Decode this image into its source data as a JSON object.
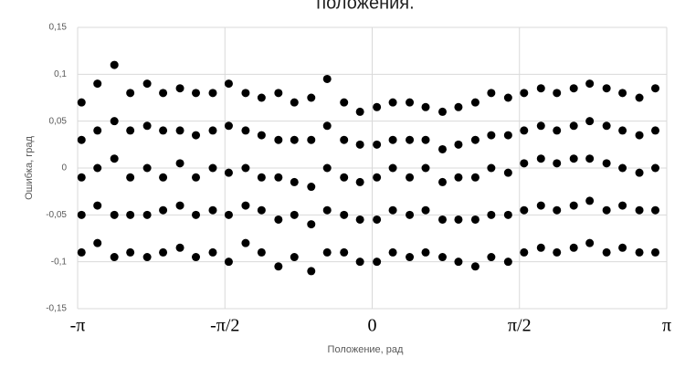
{
  "chart_data": {
    "type": "scatter",
    "title": "положения.",
    "x_label": "Положение, рад",
    "y_label": "Ошибка, град",
    "xlim": [
      -3.14159,
      3.14159
    ],
    "xticks": [
      {
        "value": -3.14159,
        "label": "-π"
      },
      {
        "value": -1.5708,
        "label": "-π/2"
      },
      0,
      {
        "value": 1.5708,
        "label": "π/2"
      },
      {
        "value": 3.14159,
        "label": "π"
      }
    ],
    "ylim": [
      -0.15,
      0.15
    ],
    "yticks": [
      {
        "value": -0.15,
        "label": "-0,15"
      },
      {
        "value": -0.1,
        "label": "-0,1"
      },
      {
        "value": -0.05,
        "label": "-0,05"
      },
      0,
      {
        "value": 0.05,
        "label": "0,05"
      },
      {
        "value": 0.1,
        "label": "0,1"
      },
      {
        "value": 0.15,
        "label": "0,15"
      }
    ],
    "grid": true,
    "color": "#000000",
    "x": [
      -3.1,
      -3.1,
      -3.1,
      -3.1,
      -3.1,
      -2.93,
      -2.93,
      -2.93,
      -2.93,
      -2.93,
      -2.75,
      -2.75,
      -2.75,
      -2.75,
      -2.75,
      -2.58,
      -2.58,
      -2.58,
      -2.58,
      -2.58,
      -2.4,
      -2.4,
      -2.4,
      -2.4,
      -2.4,
      -2.23,
      -2.23,
      -2.23,
      -2.23,
      -2.23,
      -2.05,
      -2.05,
      -2.05,
      -2.05,
      -2.05,
      -1.88,
      -1.88,
      -1.88,
      -1.88,
      -1.88,
      -1.7,
      -1.7,
      -1.7,
      -1.7,
      -1.7,
      -1.53,
      -1.53,
      -1.53,
      -1.53,
      -1.53,
      -1.35,
      -1.35,
      -1.35,
      -1.35,
      -1.35,
      -1.18,
      -1.18,
      -1.18,
      -1.18,
      -1.18,
      -1.0,
      -1.0,
      -1.0,
      -1.0,
      -1.0,
      -0.83,
      -0.83,
      -0.83,
      -0.83,
      -0.83,
      -0.65,
      -0.65,
      -0.65,
      -0.65,
      -0.65,
      -0.48,
      -0.48,
      -0.48,
      -0.48,
      -0.48,
      -0.3,
      -0.3,
      -0.3,
      -0.3,
      -0.3,
      -0.13,
      -0.13,
      -0.13,
      -0.13,
      -0.13,
      0.05,
      0.05,
      0.05,
      0.05,
      0.05,
      0.22,
      0.22,
      0.22,
      0.22,
      0.22,
      0.4,
      0.4,
      0.4,
      0.4,
      0.4,
      0.57,
      0.57,
      0.57,
      0.57,
      0.57,
      0.75,
      0.75,
      0.75,
      0.75,
      0.75,
      0.92,
      0.92,
      0.92,
      0.92,
      0.92,
      1.1,
      1.1,
      1.1,
      1.1,
      1.1,
      1.27,
      1.27,
      1.27,
      1.27,
      1.27,
      1.45,
      1.45,
      1.45,
      1.45,
      1.45,
      1.62,
      1.62,
      1.62,
      1.62,
      1.62,
      1.8,
      1.8,
      1.8,
      1.8,
      1.8,
      1.97,
      1.97,
      1.97,
      1.97,
      1.97,
      2.15,
      2.15,
      2.15,
      2.15,
      2.15,
      2.32,
      2.32,
      2.32,
      2.32,
      2.32,
      2.5,
      2.5,
      2.5,
      2.5,
      2.5,
      2.67,
      2.67,
      2.67,
      2.67,
      2.67,
      2.85,
      2.85,
      2.85,
      2.85,
      2.85,
      3.02,
      3.02,
      3.02,
      3.02,
      3.02
    ],
    "values": [
      0.07,
      0.03,
      -0.01,
      -0.05,
      -0.09,
      0.09,
      0.04,
      0,
      -0.04,
      -0.08,
      0.11,
      0.05,
      0.01,
      -0.05,
      -0.095,
      0.08,
      0.04,
      -0.01,
      -0.05,
      -0.09,
      0.09,
      0.045,
      0,
      -0.05,
      -0.095,
      0.08,
      0.04,
      -0.01,
      -0.045,
      -0.09,
      0.085,
      0.04,
      0.005,
      -0.04,
      -0.085,
      0.08,
      0.035,
      -0.01,
      -0.05,
      -0.095,
      0.08,
      0.04,
      0,
      -0.045,
      -0.09,
      0.09,
      0.045,
      -0.005,
      -0.05,
      -0.1,
      0.08,
      0.04,
      0,
      -0.04,
      -0.08,
      0.075,
      0.035,
      -0.01,
      -0.045,
      -0.09,
      0.08,
      0.03,
      -0.01,
      -0.055,
      -0.105,
      0.07,
      0.03,
      -0.015,
      -0.05,
      -0.095,
      0.075,
      0.03,
      -0.02,
      -0.06,
      -0.11,
      0.095,
      0.045,
      0,
      -0.045,
      -0.09,
      0.07,
      0.03,
      -0.01,
      -0.05,
      -0.09,
      0.06,
      0.025,
      -0.015,
      -0.055,
      -0.1,
      0.065,
      0.025,
      -0.01,
      -0.055,
      -0.1,
      0.07,
      0.03,
      0,
      -0.045,
      -0.09,
      0.07,
      0.03,
      -0.01,
      -0.05,
      -0.095,
      0.065,
      0.03,
      0,
      -0.045,
      -0.09,
      0.06,
      0.02,
      -0.015,
      -0.055,
      -0.095,
      0.065,
      0.025,
      -0.01,
      -0.055,
      -0.1,
      0.07,
      0.03,
      -0.01,
      -0.055,
      -0.105,
      0.08,
      0.035,
      0,
      -0.05,
      -0.095,
      0.075,
      0.035,
      -0.005,
      -0.05,
      -0.1,
      0.08,
      0.04,
      0.005,
      -0.045,
      -0.09,
      0.085,
      0.045,
      0.01,
      -0.04,
      -0.085,
      0.08,
      0.04,
      0.005,
      -0.045,
      -0.09,
      0.085,
      0.045,
      0.01,
      -0.04,
      -0.085,
      0.09,
      0.05,
      0.01,
      -0.035,
      -0.08,
      0.085,
      0.045,
      0.005,
      -0.045,
      -0.09,
      0.08,
      0.04,
      0,
      -0.04,
      -0.085,
      0.075,
      0.035,
      -0.005,
      -0.045,
      -0.09,
      0.085,
      0.04,
      0,
      -0.045,
      -0.09
    ]
  }
}
